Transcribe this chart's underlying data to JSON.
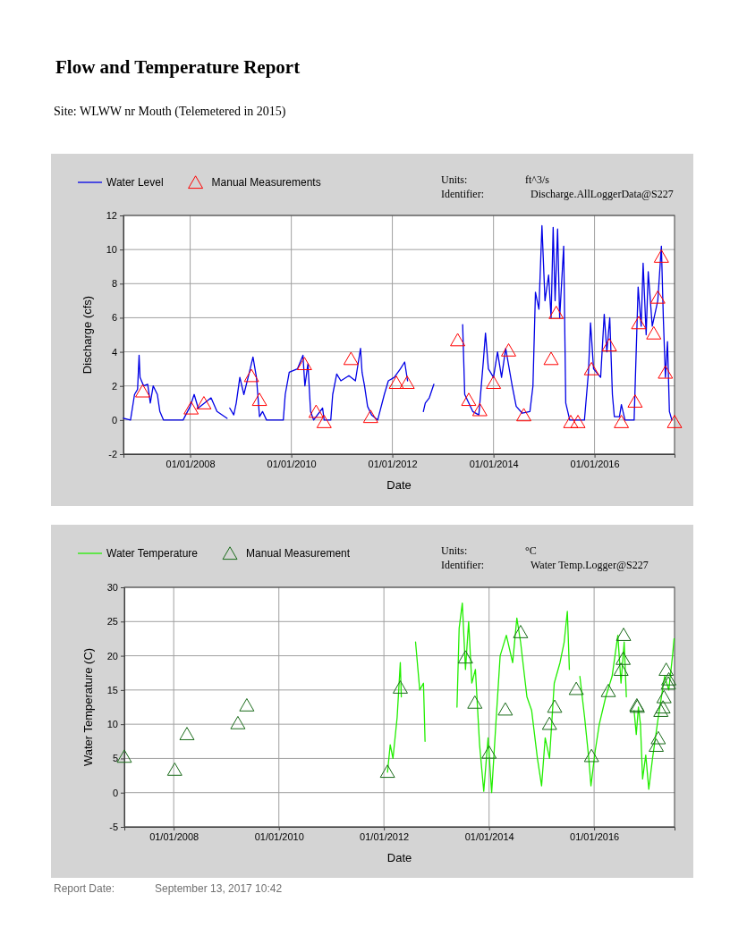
{
  "chart_data": [
    {
      "type": "line",
      "title": "Flow and Temperature Report",
      "subtitle": "Site: WLWW nr Mouth (Telemetered in 2015)",
      "xlabel": "Date",
      "ylabel": "Discharge (cfs)",
      "annotations": [
        "Units:",
        "ft^3/s",
        "Identifier:",
        "Discharge.AllLoggerData@S227"
      ],
      "xlim": [
        "2006-09-06",
        "2017-08-01"
      ],
      "xticks": [
        {
          "value": "2008-01-01",
          "label": "01/01/2008"
        },
        {
          "value": "2010-01-01",
          "label": "01/01/2010"
        },
        {
          "value": "2012-01-01",
          "label": "01/01/2012"
        },
        {
          "value": "2014-01-01",
          "label": "01/01/2014"
        },
        {
          "value": "2016-01-01",
          "label": "01/01/2016"
        }
      ],
      "ylim": [
        -2,
        12
      ],
      "yticks": [
        -2,
        0,
        2,
        4,
        6,
        8,
        10,
        12
      ],
      "grid": true,
      "legend": "top left",
      "series": [
        {
          "name": "Water Level",
          "color": "#0000e6",
          "marker": "none",
          "x": [
            "2006-09-06",
            "2006-10-27",
            "2006-11-25",
            "2006-12-17",
            "2006-12-28",
            "2007-01-04",
            "2007-01-30",
            "2007-02-28",
            "2007-03-19",
            "2007-04-09",
            "2007-05-09",
            "2007-05-27",
            "2007-06-22",
            "2007-11-11",
            "2008-01-01",
            "2008-01-30",
            "2008-02-28",
            "2008-05-31",
            "2008-07-13",
            "2008-09-24",
            "2008-10-02",
            "2008-10-13",
            "2008-11-11",
            "2008-11-29",
            "2008-12-25",
            "2009-01-23",
            "2009-03-04",
            "2009-03-30",
            "2009-04-24",
            "2009-05-16",
            "2009-06-07",
            "2009-07-06",
            "2009-11-04",
            "2009-11-18",
            "2009-12-17",
            "2010-02-14",
            "2010-03-26",
            "2010-04-09",
            "2010-05-01",
            "2010-05-20",
            "2010-06-11",
            "2010-08-15",
            "2010-08-26",
            "2010-10-13",
            "2010-10-27",
            "2010-11-25",
            "2010-12-25",
            "2011-02-21",
            "2011-04-09",
            "2011-05-16",
            "2011-05-27",
            "2011-06-14",
            "2011-07-06",
            "2011-08-04",
            "2011-09-17",
            "2011-11-04",
            "2011-12-03",
            "2012-01-15",
            "2012-02-28",
            "2012-03-30",
            "2012-04-20",
            "2012-06-14",
            "2012-08-12",
            "2012-08-26",
            "2012-09-24",
            "2012-10-27",
            "2013-02-06",
            "2013-05-23",
            "2013-06-07",
            "2013-07-06",
            "2013-08-04",
            "2013-09-17",
            "2013-10-20",
            "2013-11-04",
            "2013-11-25",
            "2014-01-01",
            "2014-01-30",
            "2014-02-28",
            "2014-03-30",
            "2014-05-16",
            "2014-06-14",
            "2014-07-28",
            "2014-09-21",
            "2014-10-13",
            "2014-10-31",
            "2014-11-25",
            "2014-12-17",
            "2015-01-08",
            "2015-02-03",
            "2015-02-21",
            "2015-03-08",
            "2015-03-22",
            "2015-04-09",
            "2015-04-24",
            "2015-05-23",
            "2015-06-07",
            "2015-07-06",
            "2015-10-20",
            "2015-11-18",
            "2015-12-03",
            "2015-12-25",
            "2016-02-14",
            "2016-03-11",
            "2016-03-30",
            "2016-04-20",
            "2016-05-09",
            "2016-05-23",
            "2016-06-29",
            "2016-07-13",
            "2016-08-08",
            "2016-10-13",
            "2016-11-11",
            "2016-12-03",
            "2016-12-17",
            "2017-01-08",
            "2017-01-23",
            "2017-02-21",
            "2017-04-02",
            "2017-04-28",
            "2017-05-12",
            "2017-05-27",
            "2017-06-11",
            "2017-06-25",
            "2017-07-13"
          ],
          "values": [
            0.1,
            0,
            1.5,
            1.8,
            3.8,
            2.5,
            2.0,
            2.1,
            1.0,
            2.0,
            1.5,
            0.5,
            0,
            0,
            0.8,
            1.5,
            0.7,
            1.3,
            0.5,
            0.1,
            null,
            0.7,
            0.3,
            1.0,
            2.5,
            1.5,
            2.8,
            3.7,
            2.5,
            0.2,
            0.5,
            0,
            0,
            1.5,
            2.8,
            3.0,
            3.8,
            2.0,
            3.3,
            0.5,
            0,
            0.7,
            0,
            0,
            1.5,
            2.7,
            2.3,
            2.6,
            2.3,
            4.2,
            2.8,
            2.0,
            0.8,
            0.3,
            0,
            1.5,
            2.3,
            2.5,
            3.0,
            3.4,
            2.3,
            null,
            0.5,
            1.0,
            1.3,
            2.1,
            null,
            5.6,
            1.5,
            1.0,
            0.5,
            0.3,
            3.5,
            5.1,
            3.0,
            2.5,
            4.0,
            2.5,
            4.2,
            2.0,
            0.8,
            0.4,
            0.5,
            2.0,
            7.5,
            6.5,
            11.4,
            7.0,
            8.5,
            6.0,
            11.3,
            7.0,
            11.2,
            6.0,
            10.2,
            1.0,
            0,
            0,
            2.8,
            5.7,
            3.0,
            2.5,
            6.2,
            4.0,
            6.0,
            1.5,
            0.2,
            0.2,
            0.9,
            0,
            0,
            7.8,
            5.5,
            9.2,
            5.0,
            8.7,
            5.5,
            7.0,
            10.2,
            6.0,
            2.5,
            4.6,
            0.5,
            0
          ]
        },
        {
          "name": "Manual Measurements",
          "type": "scatter",
          "color": "#ff0000",
          "marker": "triangle",
          "x": [
            "2007-01-23",
            "2008-01-08",
            "2008-04-09",
            "2009-03-19",
            "2009-05-16",
            "2010-04-06",
            "2010-06-29",
            "2010-08-26",
            "2011-03-08",
            "2011-07-28",
            "2012-01-30",
            "2012-04-17",
            "2013-04-17",
            "2013-07-06",
            "2013-09-24",
            "2014-01-01",
            "2014-04-20",
            "2014-08-08",
            "2015-02-21",
            "2015-03-30",
            "2015-07-13",
            "2015-09-03",
            "2015-12-10",
            "2016-04-17",
            "2016-07-13",
            "2016-10-20",
            "2016-11-15",
            "2017-03-04",
            "2017-04-02",
            "2017-04-28",
            "2017-05-27",
            "2017-08-01"
          ],
          "values": [
            1.7,
            0.7,
            1.0,
            2.6,
            1.2,
            3.3,
            0.5,
            -0.1,
            3.6,
            0.2,
            2.2,
            2.2,
            4.7,
            1.2,
            0.6,
            2.2,
            4.1,
            0.3,
            3.6,
            6.3,
            -0.1,
            -0.1,
            3.0,
            4.4,
            -0.1,
            1.1,
            5.7,
            5.1,
            7.2,
            9.6,
            2.8,
            -0.1
          ]
        }
      ]
    },
    {
      "type": "line",
      "xlabel": "Date",
      "ylabel": "Water Temperature (C)",
      "annotations": [
        "Units:",
        "°C",
        "Identifier:",
        "Water Temp.Logger@S227",
        "Report Date:",
        "September 13, 2017 10:42"
      ],
      "xlim": [
        "2007-01-23",
        "2017-07-13"
      ],
      "xticks": [
        {
          "value": "2008-01-01",
          "label": "01/01/2008"
        },
        {
          "value": "2010-01-01",
          "label": "01/01/2010"
        },
        {
          "value": "2012-01-01",
          "label": "01/01/2012"
        },
        {
          "value": "2014-01-01",
          "label": "01/01/2014"
        },
        {
          "value": "2016-01-01",
          "label": "01/01/2016"
        }
      ],
      "ylim": [
        -5,
        30
      ],
      "yticks": [
        -5,
        0,
        5,
        10,
        15,
        20,
        25,
        30
      ],
      "grid": true,
      "legend": "top left",
      "series": [
        {
          "name": "Water Temperature",
          "color": "#22ee00",
          "marker": "none",
          "x": [
            "2012-01-26",
            "2012-02-14",
            "2012-03-04",
            "2012-04-02",
            "2012-04-24",
            "2012-05-01",
            "2012-06-14",
            "2012-08-08",
            "2012-09-06",
            "2012-10-02",
            "2012-10-13",
            "2013-01-01",
            "2013-05-23",
            "2013-06-07",
            "2013-06-29",
            "2013-07-21",
            "2013-08-12",
            "2013-09-03",
            "2013-09-28",
            "2013-10-27",
            "2013-11-25",
            "2013-12-25",
            "2014-01-19",
            "2014-02-17",
            "2014-03-19",
            "2014-05-01",
            "2014-06-14",
            "2014-07-13",
            "2014-08-08",
            "2014-09-21",
            "2014-10-24",
            "2014-12-03",
            "2015-01-01",
            "2015-01-26",
            "2015-02-25",
            "2015-03-30",
            "2015-05-09",
            "2015-06-07",
            "2015-06-29",
            "2015-07-13",
            "2015-08-19",
            "2015-09-24",
            "2015-10-27",
            "2015-11-25",
            "2015-12-10",
            "2016-01-08",
            "2016-02-06",
            "2016-03-22",
            "2016-05-05",
            "2016-06-14",
            "2016-07-06",
            "2016-07-28",
            "2016-08-12",
            "2016-09-13",
            "2016-10-05",
            "2016-10-20",
            "2016-11-04",
            "2016-11-18",
            "2016-12-03",
            "2016-12-25",
            "2017-01-15",
            "2017-02-10",
            "2017-03-22",
            "2017-05-05",
            "2017-06-03",
            "2017-06-29",
            "2017-07-10"
          ],
          "values": [
            3.0,
            7.0,
            5.0,
            11.0,
            19.0,
            14.0,
            null,
            22.0,
            15.0,
            16.0,
            7.5,
            null,
            12.5,
            24.0,
            27.7,
            18.0,
            25.0,
            16.0,
            18.0,
            7.0,
            0.2,
            8.0,
            0,
            10.0,
            20.0,
            23.0,
            19.0,
            25.5,
            22.0,
            14.0,
            12.0,
            5.0,
            1.0,
            8.0,
            5.0,
            16.0,
            19.0,
            22.0,
            26.5,
            18.0,
            null,
            17.0,
            11.0,
            5.0,
            1.0,
            6.0,
            10.0,
            14.0,
            17.0,
            23.0,
            16.0,
            22.0,
            14.0,
            null,
            12.0,
            8.5,
            12.5,
            10.0,
            2.0,
            5.5,
            0.5,
            5.0,
            11.0,
            17.0,
            15.0,
            20.0,
            22.5
          ]
        },
        {
          "name": "Manual Measurement",
          "type": "scatter",
          "color": "#1a6b1a",
          "marker": "triangle",
          "x": [
            "2007-01-23",
            "2008-01-08",
            "2008-04-02",
            "2009-03-22",
            "2009-05-23",
            "2012-01-26",
            "2012-04-24",
            "2013-07-21",
            "2013-09-24",
            "2014-01-01",
            "2014-04-24",
            "2014-08-08",
            "2015-02-25",
            "2015-04-02",
            "2015-08-30",
            "2015-12-14",
            "2016-04-09",
            "2016-07-06",
            "2016-07-21",
            "2016-07-24",
            "2016-10-24",
            "2016-10-27",
            "2017-03-08",
            "2017-03-22",
            "2017-04-09",
            "2017-04-24",
            "2017-05-01",
            "2017-05-16",
            "2017-05-31",
            "2017-06-03"
          ],
          "values": [
            5.3,
            3.4,
            8.6,
            10.2,
            12.8,
            3.1,
            15.4,
            19.8,
            13.2,
            5.9,
            12.2,
            23.5,
            10.1,
            12.6,
            15.2,
            5.4,
            14.9,
            18.0,
            19.6,
            23.1,
            12.8,
            12.6,
            6.9,
            8.0,
            12.0,
            12.5,
            14.0,
            18.0,
            16.0,
            16.6
          ]
        }
      ]
    }
  ]
}
